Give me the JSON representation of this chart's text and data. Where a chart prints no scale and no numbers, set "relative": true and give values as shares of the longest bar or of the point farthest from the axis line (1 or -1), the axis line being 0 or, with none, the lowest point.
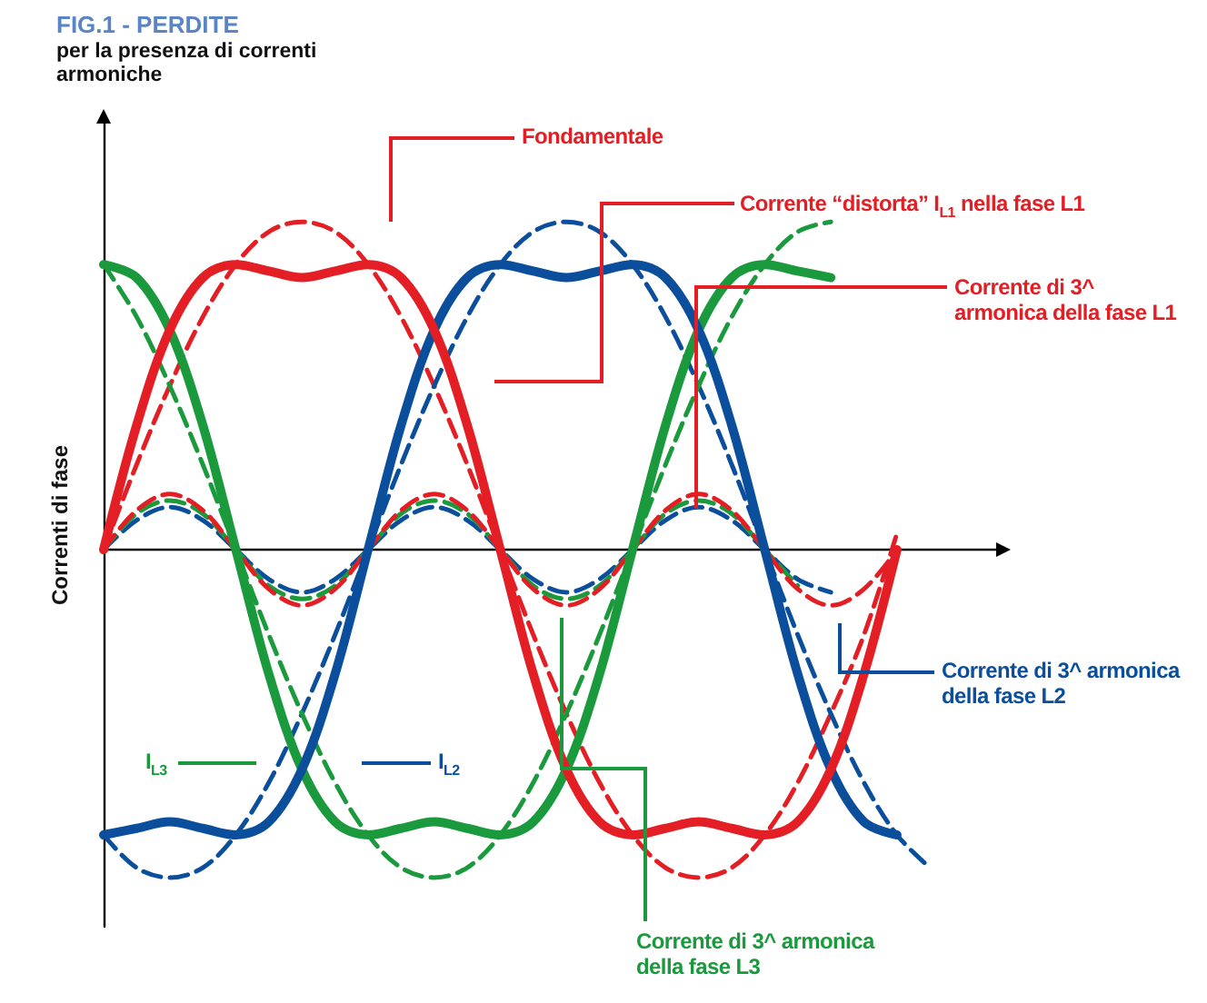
{
  "chart_data": {
    "type": "line",
    "relative": true,
    "title": "FIG.1 - PERDITE",
    "subtitle": "per la presenza di correnti armoniche",
    "ylabel": "Correnti di fase",
    "marker": "none",
    "categories": [
      null,
      null,
      null,
      null,
      null,
      null,
      null,
      null,
      null,
      null,
      null,
      null,
      null,
      null,
      null,
      null,
      null,
      null,
      null,
      null,
      null,
      null,
      null,
      null,
      null,
      null,
      null,
      null
    ],
    "series": [
      {
        "color": "#e31e24",
        "line_style": "dashed",
        "values": [
          0,
          0.26,
          0.5,
          0.71,
          0.87,
          0.97,
          1,
          0.97,
          0.87,
          0.71,
          0.5,
          0.26,
          0,
          -0.26,
          -0.5,
          -0.71,
          -0.87,
          -0.97,
          -1,
          -0.97,
          -0.87,
          -0.71,
          -0.5,
          -0.26,
          0.05,
          null,
          null,
          null
        ]
      },
      {
        "color": "#0b4f9c",
        "line_style": "dashed",
        "values": [
          -0.87,
          -0.97,
          -1,
          -0.97,
          -0.87,
          -0.71,
          -0.5,
          -0.26,
          0,
          0.26,
          0.5,
          0.71,
          0.87,
          0.97,
          1,
          0.97,
          0.87,
          0.71,
          0.5,
          0.26,
          0,
          -0.26,
          -0.5,
          -0.71,
          -0.87,
          -0.97,
          null,
          null
        ]
      },
      {
        "color": "#1a9a3c",
        "line_style": "dashed",
        "values": [
          0.87,
          0.71,
          0.5,
          0.26,
          0,
          -0.26,
          -0.5,
          -0.71,
          -0.87,
          -0.97,
          -1,
          -0.97,
          -0.87,
          -0.71,
          -0.5,
          -0.26,
          0,
          0.26,
          0.5,
          0.71,
          0.87,
          0.97,
          1,
          null,
          null,
          null,
          null,
          null
        ]
      },
      {
        "color": "#0b4f9c",
        "line_style": "dashed",
        "values": [
          0,
          0.09,
          0.13,
          0.09,
          0,
          -0.09,
          -0.13,
          -0.09,
          0,
          0.09,
          0.13,
          0.09,
          0,
          -0.09,
          -0.13,
          -0.09,
          0,
          0.09,
          0.13,
          0.09,
          0,
          -0.09,
          -0.13,
          null,
          null,
          null,
          null,
          null
        ]
      },
      {
        "color": "#1a9a3c",
        "line_style": "dashed",
        "values": [
          0,
          0.11,
          0.15,
          0.11,
          0,
          -0.11,
          -0.15,
          -0.11,
          0,
          0.11,
          0.15,
          0.11,
          0,
          -0.11,
          -0.15,
          -0.11,
          0,
          0.11,
          0.15,
          0.11,
          0,
          -0.11,
          null,
          null,
          null,
          null,
          null,
          null
        ]
      },
      {
        "color": "#e31e24",
        "line_style": "dashed",
        "values": [
          0,
          0.12,
          0.17,
          0.12,
          0,
          -0.12,
          -0.17,
          -0.12,
          0,
          0.12,
          0.17,
          0.12,
          0,
          -0.12,
          -0.17,
          -0.12,
          0,
          0.12,
          0.17,
          0.12,
          0,
          -0.12,
          -0.17,
          -0.12,
          0,
          null,
          null,
          null
        ]
      },
      {
        "color": "#1a9a3c",
        "line_style": "solid",
        "values": [
          0.87,
          0.83,
          0.67,
          0.38,
          0,
          -0.38,
          -0.67,
          -0.83,
          -0.87,
          -0.85,
          -0.83,
          -0.85,
          -0.87,
          -0.83,
          -0.67,
          -0.38,
          0,
          0.38,
          0.67,
          0.83,
          0.87,
          0.85,
          0.83,
          null,
          null,
          null,
          null,
          null
        ]
      },
      {
        "color": "#0b4f9c",
        "line_style": "solid",
        "values": [
          -0.87,
          -0.85,
          -0.83,
          -0.85,
          -0.87,
          -0.83,
          -0.67,
          -0.38,
          0,
          0.38,
          0.67,
          0.83,
          0.87,
          0.85,
          0.83,
          0.85,
          0.87,
          0.83,
          0.67,
          0.38,
          0,
          -0.38,
          -0.67,
          -0.83,
          -0.87,
          null,
          null,
          null
        ]
      },
      {
        "color": "#e31e24",
        "line_style": "solid",
        "values": [
          0,
          0.38,
          0.67,
          0.83,
          0.87,
          0.85,
          0.83,
          0.85,
          0.87,
          0.83,
          0.67,
          0.38,
          0,
          -0.38,
          -0.67,
          -0.83,
          -0.87,
          -0.85,
          -0.83,
          -0.85,
          -0.87,
          -0.83,
          -0.67,
          -0.38,
          0,
          null,
          null,
          null
        ]
      }
    ],
    "annotations": [
      "Fondamentale",
      "Corrente “distorta” I$_{L1}$ nella fase L1",
      "Corrente di 3^ armonica della fase L1",
      "Corrente di 3^ armonica della fase L2",
      "Corrente di 3^ armonica della fase L3",
      "I$_{L3}$",
      "I$_{L2}$"
    ]
  }
}
